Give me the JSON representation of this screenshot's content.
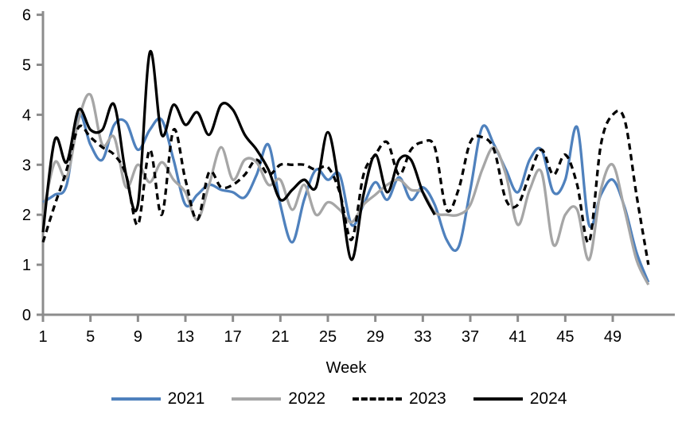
{
  "chart_data": {
    "type": "line",
    "title": "",
    "xlabel": "Week",
    "ylabel": "",
    "x_range": [
      1,
      52
    ],
    "ylim": [
      0,
      6
    ],
    "y_ticks": [
      0,
      1,
      2,
      3,
      4,
      5,
      6
    ],
    "x_ticks": [
      1,
      5,
      9,
      13,
      17,
      21,
      25,
      29,
      33,
      37,
      41,
      45,
      49
    ],
    "grid": false,
    "legend_position": "bottom",
    "axis_color": "#8c8c8c",
    "text_color": "#000000",
    "series": [
      {
        "name": "2021",
        "color": "#4f81bd",
        "style": "solid",
        "start_week": 1,
        "values": [
          2.25,
          2.4,
          2.6,
          4.0,
          3.4,
          3.1,
          3.8,
          3.85,
          3.3,
          3.7,
          3.9,
          3.1,
          2.2,
          2.4,
          2.6,
          2.5,
          2.45,
          2.35,
          2.8,
          3.4,
          2.2,
          1.45,
          2.3,
          2.9,
          2.7,
          2.8,
          1.8,
          2.2,
          2.65,
          2.3,
          2.75,
          2.3,
          2.55,
          2.2,
          1.5,
          1.35,
          2.5,
          3.75,
          3.4,
          2.9,
          2.45,
          3.1,
          3.3,
          2.45,
          2.7,
          3.75,
          1.8,
          2.4,
          2.7,
          2.15,
          1.25,
          0.65
        ]
      },
      {
        "name": "2022",
        "color": "#a6a6a6",
        "style": "solid",
        "start_week": 1,
        "values": [
          2.0,
          3.05,
          2.75,
          3.9,
          4.4,
          3.4,
          3.55,
          2.55,
          3.0,
          2.65,
          3.05,
          2.7,
          2.45,
          1.9,
          2.6,
          3.35,
          2.7,
          3.1,
          3.05,
          2.6,
          2.7,
          2.1,
          2.6,
          2.0,
          2.25,
          2.1,
          1.85,
          2.2,
          2.4,
          2.6,
          2.7,
          2.5,
          2.45,
          2.05,
          2.0,
          2.0,
          2.2,
          2.9,
          3.35,
          2.8,
          1.8,
          2.5,
          2.85,
          1.4,
          2.0,
          2.1,
          1.1,
          2.5,
          3.0,
          2.1,
          1.1,
          0.6
        ]
      },
      {
        "name": "2023",
        "color": "#000000",
        "style": "dashed",
        "start_week": 1,
        "values": [
          1.45,
          2.2,
          2.9,
          3.75,
          3.55,
          3.35,
          3.2,
          2.8,
          1.8,
          3.3,
          2.0,
          3.7,
          2.7,
          1.9,
          2.85,
          2.55,
          2.6,
          2.8,
          3.1,
          2.8,
          3.0,
          3.0,
          3.0,
          2.9,
          2.95,
          2.45,
          1.5,
          2.8,
          3.2,
          3.45,
          2.8,
          3.3,
          3.45,
          3.35,
          2.1,
          2.5,
          3.45,
          3.55,
          3.3,
          2.3,
          2.2,
          2.8,
          3.3,
          2.8,
          3.2,
          2.6,
          1.45,
          3.4,
          4.0,
          3.9,
          2.4,
          1.0
        ]
      },
      {
        "name": "2024",
        "color": "#000000",
        "style": "solid",
        "start_week": 1,
        "values": [
          1.65,
          3.5,
          3.05,
          4.1,
          3.7,
          3.7,
          4.2,
          2.8,
          2.2,
          5.25,
          3.6,
          4.2,
          3.8,
          4.05,
          3.6,
          4.2,
          4.1,
          3.6,
          3.3,
          2.9,
          2.3,
          2.5,
          2.7,
          2.55,
          3.65,
          2.5,
          1.1,
          2.4,
          3.2,
          2.45,
          3.1,
          3.1,
          2.45,
          2.0
        ]
      }
    ]
  }
}
